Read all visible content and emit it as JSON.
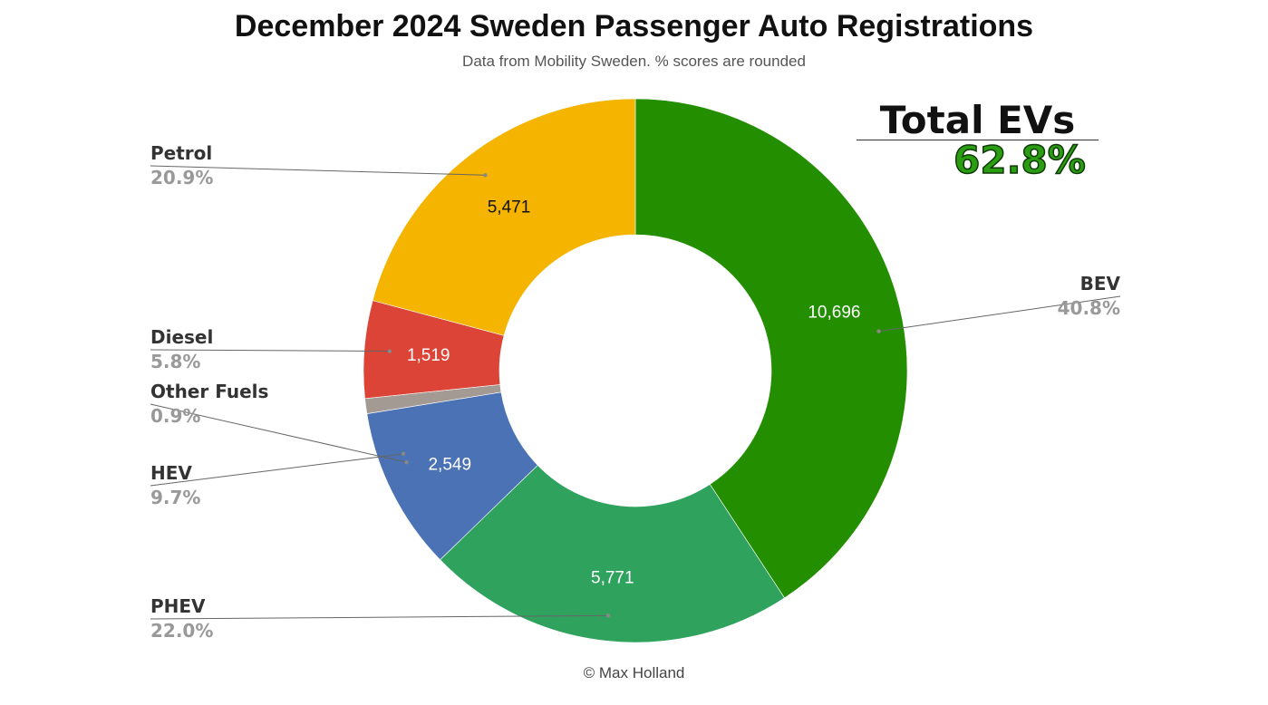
{
  "chart_data": {
    "type": "pie",
    "title": "December 2024 Sweden Passenger Auto Registrations",
    "subtitle": "Data from Mobility Sweden. % scores are rounded",
    "credit": "© Max Holland",
    "donut": true,
    "total_evs": {
      "label": "Total EVs",
      "value": "62.8%"
    },
    "slices": [
      {
        "name": "BEV",
        "value": 10696,
        "value_label": "10,696",
        "percent": "40.8%",
        "color": "#238f00",
        "text_color": "#ffffff"
      },
      {
        "name": "PHEV",
        "value": 5771,
        "value_label": "5,771",
        "percent": "22.0%",
        "color": "#2fa35e",
        "text_color": "#ffffff"
      },
      {
        "name": "HEV",
        "value": 2549,
        "value_label": "2,549",
        "percent": "9.7%",
        "color": "#4a72b4",
        "text_color": "#ffffff"
      },
      {
        "name": "Other Fuels",
        "value": 236,
        "value_label": "",
        "percent": "0.9%",
        "color": "#a49a94",
        "text_color": "#ffffff"
      },
      {
        "name": "Diesel",
        "value": 1519,
        "value_label": "1,519",
        "percent": "5.8%",
        "color": "#db4437",
        "text_color": "#ffffff"
      },
      {
        "name": "Petrol",
        "value": 5471,
        "value_label": "5,471",
        "percent": "20.9%",
        "color": "#f4b400",
        "text_color": "#111111"
      }
    ]
  }
}
